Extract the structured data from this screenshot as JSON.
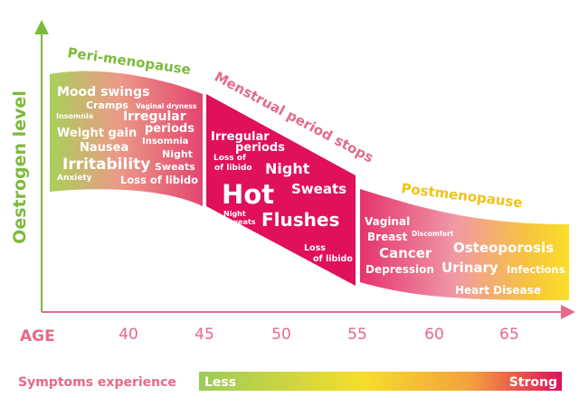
{
  "y_axis_label": "Oestrogen level",
  "x_axis_label": "AGE",
  "age_ticks": [
    "40",
    "45",
    "50",
    "55",
    "60",
    "65"
  ],
  "phases": {
    "peri": "Peri-menopause",
    "menstrual": "Menstrual period stops",
    "post": "Postmenopause"
  },
  "peri_symptoms": {
    "mood_swings": "Mood swings",
    "cramps": "Cramps",
    "vaginal_dryness": "Vaginal dryness",
    "insomnia_1": "Insomnia",
    "irregular": "Irregular",
    "periods": "periods",
    "weight_gain": "Weight gain",
    "insomnia_2": "Insomnia",
    "nausea": "Nausea",
    "night": "Night",
    "irritability": "Irritability",
    "sweats": "Sweats",
    "anxiety": "Anxiety",
    "loss_of_libido": "Loss of libido"
  },
  "stop_symptoms": {
    "irregular": "Irregular",
    "periods": "periods",
    "loss_of": "Loss of",
    "libido": "of libido",
    "night": "Night",
    "sweats": "Sweats",
    "hot": "Hot",
    "night_small": "Night",
    "sweats_small": "sweats",
    "flushes": "Flushes",
    "loss2_a": "Loss",
    "loss2_b": "of libido"
  },
  "post_symptoms": {
    "vaginal": "Vaginal",
    "discomfort": "Discomfort",
    "breast": "Breast",
    "cancer": "Cancer",
    "depression": "Depression",
    "osteoporosis": "Osteoporosis",
    "urinary": "Urinary",
    "infections": "Infections",
    "heart_disease": "Heart Disease"
  },
  "legend": {
    "title": "Symptoms experience",
    "less": "Less",
    "strong": "Strong"
  },
  "colors": {
    "green": "#7dba3c",
    "pink": "#e2547d",
    "magenta": "#e0105a",
    "yellow": "#f5d426"
  }
}
